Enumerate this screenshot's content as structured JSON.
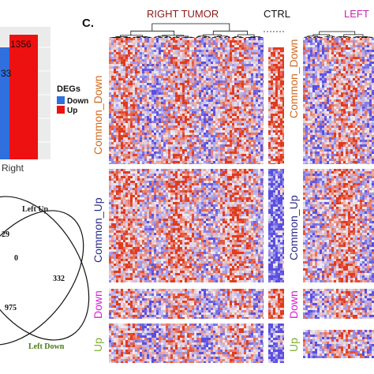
{
  "bar_panel": {
    "chart_data": {
      "type": "bar",
      "categories": [
        "Right"
      ],
      "series": [
        {
          "name": "Down",
          "values": [
            null
          ]
        },
        {
          "name": "Up",
          "values": [
            1356
          ]
        }
      ],
      "bar_labels": [
        "33",
        "1356"
      ],
      "legend_title": "DEGs",
      "legend_position": "right",
      "grid": true
    },
    "colors": {
      "down": "#2f6fde",
      "up": "#ee1111",
      "panel_bg": "#ebebeb",
      "grid": "#ffffff"
    }
  },
  "venn": {
    "set_labels": {
      "left_up": "Left Up",
      "left_down": "Left Down"
    },
    "region_values": [
      "29",
      "0",
      "332",
      "975"
    ],
    "label_colors": {
      "left_up": "#222222",
      "left_down": "#4a7a14"
    }
  },
  "heatmap_panel": {
    "panel_letter": "C.",
    "column_headers": [
      {
        "text": "RIGHT TUMOR",
        "color": "#8b1a1a"
      },
      {
        "text": "CTRL",
        "color": "#111111"
      },
      {
        "text": "LEFT",
        "color": "#cc22aa"
      }
    ],
    "row_labels": [
      {
        "text": "Common_Down",
        "color": "#d2691e"
      },
      {
        "text": "Common_Up",
        "color": "#2a2a8a"
      },
      {
        "text": "Down",
        "color": "#d81bd8"
      },
      {
        "text": "Up",
        "color": "#7fae2a"
      }
    ],
    "colors": {
      "high": "#e03a1e",
      "low": "#5a4ee0",
      "mid": "#f2eef2"
    }
  }
}
